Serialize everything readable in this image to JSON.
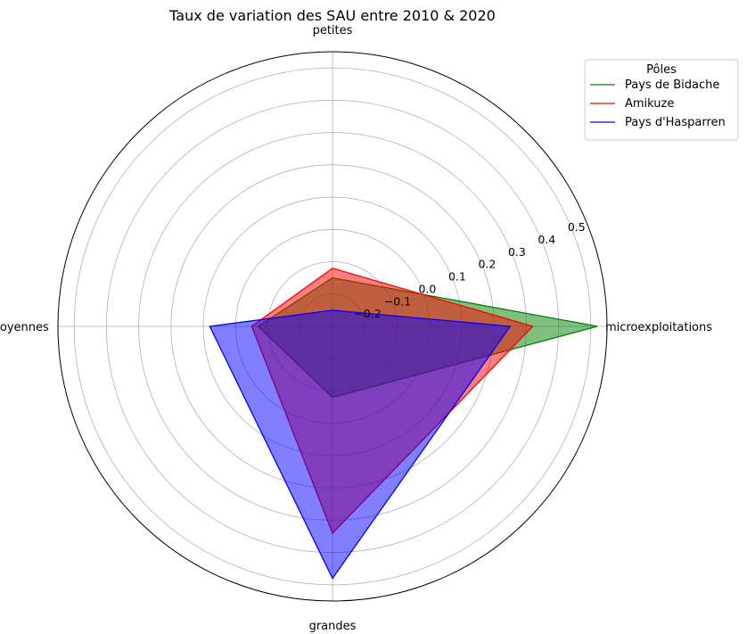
{
  "chart_data": {
    "type": "radar",
    "title": "Taux de variation des SAU entre 2010 & 2020",
    "categories": [
      "microexploitations",
      "petites",
      "moyennes",
      "grandes"
    ],
    "rlim": [
      -0.3,
      0.55
    ],
    "rticks": [
      -0.2,
      -0.1,
      0.0,
      0.1,
      0.2,
      0.3,
      0.4,
      0.5
    ],
    "rtick_labels": [
      "−0.2",
      "−0.1",
      "0.0",
      "0.1",
      "0.2",
      "0.3",
      "0.4",
      "0.5"
    ],
    "grid": true,
    "legend": {
      "title": "Pôles",
      "placement": "top-right"
    },
    "series": [
      {
        "name": "Pays de Bidache",
        "values": [
          0.52,
          -0.15,
          -0.07,
          -0.08
        ],
        "color": "#008000",
        "fill_alpha": 0.5
      },
      {
        "name": "Amikuze",
        "values": [
          0.32,
          -0.12,
          -0.05,
          0.34
        ],
        "color": "#ff0000",
        "fill_alpha": 0.5
      },
      {
        "name": "Pays d'Hasparren",
        "values": [
          0.25,
          -0.25,
          0.08,
          0.48
        ],
        "color": "#0000ff",
        "fill_alpha": 0.5
      }
    ]
  }
}
